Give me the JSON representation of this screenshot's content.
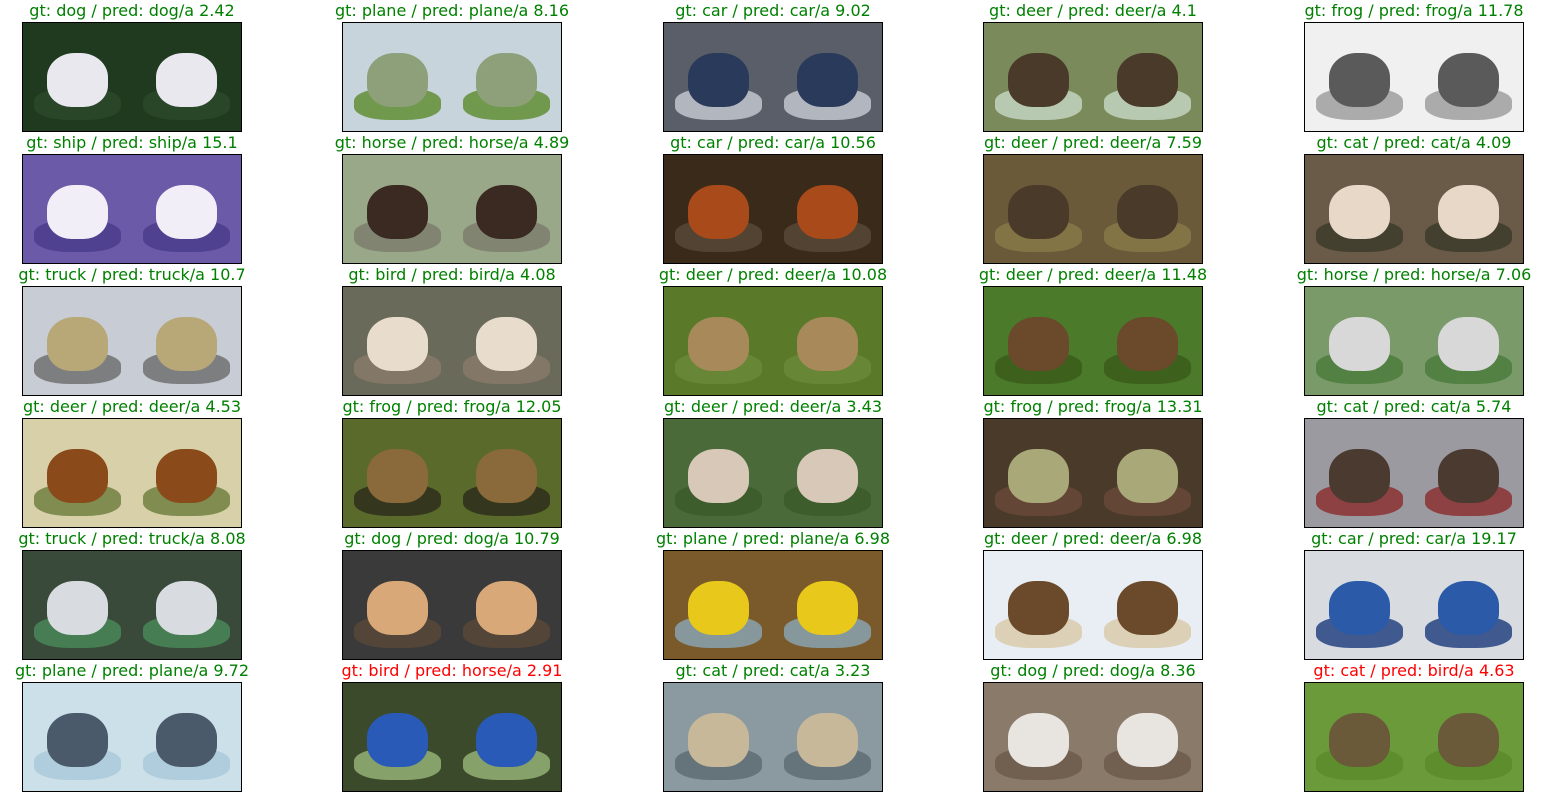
{
  "colors": {
    "correct": "#008000",
    "wrong": "#ff0000"
  },
  "grid": [
    [
      {
        "label": "gt: dog / pred: dog/a 2.42",
        "correct": true,
        "bg": "#1f3a1f",
        "obj": "#e8e8ee",
        "obj2": "#2c4a2c"
      },
      {
        "label": "gt: plane / pred: plane/a 8.16",
        "correct": true,
        "bg": "#c8d4dc",
        "obj": "#8ea07a",
        "obj2": "#5a8a2a"
      },
      {
        "label": "gt: car / pred: car/a 9.02",
        "correct": true,
        "bg": "#5a5e68",
        "obj": "#2a3a5a",
        "obj2": "#c8ccd4"
      },
      {
        "label": "gt: deer / pred: deer/a 4.1",
        "correct": true,
        "bg": "#7a8a5a",
        "obj": "#4a3a2a",
        "obj2": "#c8d8c8"
      },
      {
        "label": "gt: frog / pred: frog/a 11.78",
        "correct": true,
        "bg": "#f0f0f0",
        "obj": "#5a5a5a",
        "obj2": "#9a9a9a"
      }
    ],
    [
      {
        "label": "gt: ship / pred: ship/a 15.1",
        "correct": true,
        "bg": "#6a5aa8",
        "obj": "#f2eef8",
        "obj2": "#4a3a8a"
      },
      {
        "label": "gt: horse / pred: horse/a 4.89",
        "correct": true,
        "bg": "#9aa88a",
        "obj": "#3a2a22",
        "obj2": "#7a7a6a"
      },
      {
        "label": "gt: car / pred: car/a 10.56",
        "correct": true,
        "bg": "#3a2a1a",
        "obj": "#a84a1a",
        "obj2": "#5a4a3a"
      },
      {
        "label": "gt: deer / pred: deer/a 7.59",
        "correct": true,
        "bg": "#6a5a3a",
        "obj": "#4a3a2a",
        "obj2": "#8a7a4a"
      },
      {
        "label": "gt: cat / pred: cat/a 4.09",
        "correct": true,
        "bg": "#6a5a48",
        "obj": "#e8d8c8",
        "obj2": "#3a3a2a"
      }
    ],
    [
      {
        "label": "gt: truck / pred: truck/a 10.7",
        "correct": true,
        "bg": "#c8ccd4",
        "obj": "#b8a878",
        "obj2": "#6a6a6a"
      },
      {
        "label": "gt: bird / pred: bird/a 4.08",
        "correct": true,
        "bg": "#6a6a5a",
        "obj": "#e8dccc",
        "obj2": "#8a7a6a"
      },
      {
        "label": "gt: deer / pred: deer/a 10.08",
        "correct": true,
        "bg": "#5a7a2a",
        "obj": "#a88a5a",
        "obj2": "#6a8a3a"
      },
      {
        "label": "gt: deer / pred: deer/a 11.48",
        "correct": true,
        "bg": "#4a7a2a",
        "obj": "#6a4a2a",
        "obj2": "#3a5a1a"
      },
      {
        "label": "gt: horse / pred: horse/a 7.06",
        "correct": true,
        "bg": "#7a9a6a",
        "obj": "#d8d8d8",
        "obj2": "#4a7a3a"
      }
    ],
    [
      {
        "label": "gt: deer / pred: deer/a 4.53",
        "correct": true,
        "bg": "#d8d0a8",
        "obj": "#8a4a1a",
        "obj2": "#6a7a3a"
      },
      {
        "label": "gt: frog / pred: frog/a 12.05",
        "correct": true,
        "bg": "#5a6a2a",
        "obj": "#8a6a3a",
        "obj2": "#2a2a1a"
      },
      {
        "label": "gt: deer / pred: deer/a 3.43",
        "correct": true,
        "bg": "#4a6a3a",
        "obj": "#d8c8b8",
        "obj2": "#3a5a2a"
      },
      {
        "label": "gt: frog / pred: frog/a 13.31",
        "correct": true,
        "bg": "#4a3a2a",
        "obj": "#a8a878",
        "obj2": "#6a4a3a"
      },
      {
        "label": "gt: cat / pred: cat/a 5.74",
        "correct": true,
        "bg": "#9a9aa0",
        "obj": "#4a3a30",
        "obj2": "#8a2a2a"
      }
    ],
    [
      {
        "label": "gt: truck / pred: truck/a 8.08",
        "correct": true,
        "bg": "#3a4a3a",
        "obj": "#d8dce0",
        "obj2": "#4a8a5a"
      },
      {
        "label": "gt: dog / pred: dog/a 10.79",
        "correct": true,
        "bg": "#3a3a3a",
        "obj": "#d8a878",
        "obj2": "#5a4a3a"
      },
      {
        "label": "gt: plane / pred: plane/a 6.98",
        "correct": true,
        "bg": "#7a5a2a",
        "obj": "#e8c81a",
        "obj2": "#8aa8b8"
      },
      {
        "label": "gt: deer / pred: deer/a 6.98",
        "correct": true,
        "bg": "#e8eef4",
        "obj": "#6a4a2a",
        "obj2": "#d8c8a8"
      },
      {
        "label": "gt: car / pred: car/a 19.17",
        "correct": true,
        "bg": "#d8dce0",
        "obj": "#2a5aa8",
        "obj2": "#1a3a7a"
      }
    ],
    [
      {
        "label": "gt: plane / pred: plane/a 9.72",
        "correct": true,
        "bg": "#cce0ea",
        "obj": "#4a5a6a",
        "obj2": "#a8c8d8"
      },
      {
        "label": "gt: bird / pred: horse/a 2.91",
        "correct": false,
        "bg": "#3a4a2a",
        "obj": "#2a5ab8",
        "obj2": "#9ab87a"
      },
      {
        "label": "gt: cat / pred: cat/a 3.23",
        "correct": true,
        "bg": "#8a9aa0",
        "obj": "#c8b89a",
        "obj2": "#5a6a70"
      },
      {
        "label": "gt: dog / pred: dog/a 8.36",
        "correct": true,
        "bg": "#8a7a6a",
        "obj": "#e8e4e0",
        "obj2": "#6a5a4a"
      },
      {
        "label": "gt: cat / pred: bird/a 4.63",
        "correct": false,
        "bg": "#6a9a3a",
        "obj": "#6a5a3a",
        "obj2": "#5a8a2a"
      }
    ]
  ]
}
